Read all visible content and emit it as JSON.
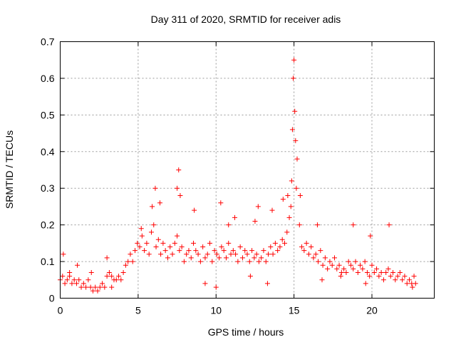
{
  "chart_data": {
    "type": "scatter",
    "title": "Day 311 of 2020, SRMTID for receiver adis",
    "xlabel": "GPS time / hours",
    "ylabel": "SRMTID / TECUs",
    "xlim": [
      0,
      24
    ],
    "ylim": [
      0,
      0.7
    ],
    "xticks": [
      0,
      5,
      10,
      15,
      20
    ],
    "yticks": [
      0,
      0.1,
      0.2,
      0.3,
      0.4,
      0.5,
      0.6,
      0.7
    ],
    "xtick_labels": [
      "0",
      "5",
      "10",
      "15",
      "20"
    ],
    "ytick_labels": [
      "0",
      "0.1",
      "0.2",
      "0.3",
      "0.4",
      "0.5",
      "0.6",
      "0.7"
    ],
    "grid": true,
    "marker": "+",
    "series": [
      {
        "name": "SRMTID",
        "color": "#ff0000",
        "x": [
          0.0,
          0.15,
          0.3,
          0.45,
          0.6,
          0.75,
          0.9,
          1.05,
          1.2,
          1.35,
          1.5,
          1.65,
          1.8,
          1.95,
          2.1,
          2.25,
          2.4,
          2.55,
          2.7,
          2.85,
          3.0,
          3.15,
          3.3,
          3.45,
          3.6,
          3.75,
          3.9,
          4.05,
          4.2,
          4.35,
          4.5,
          4.65,
          4.8,
          4.95,
          5.1,
          5.25,
          5.4,
          5.55,
          5.7,
          5.85,
          6.0,
          6.15,
          6.3,
          6.45,
          6.6,
          6.75,
          6.9,
          7.05,
          7.2,
          7.35,
          7.5,
          7.65,
          7.8,
          7.95,
          8.1,
          8.25,
          8.4,
          8.55,
          8.7,
          8.85,
          9.0,
          9.15,
          9.3,
          9.45,
          9.6,
          9.75,
          9.9,
          10.05,
          10.2,
          10.35,
          10.5,
          10.65,
          10.8,
          10.95,
          11.1,
          11.25,
          11.4,
          11.55,
          11.7,
          11.85,
          12.0,
          12.15,
          12.3,
          12.45,
          12.6,
          12.75,
          12.9,
          13.05,
          13.2,
          13.35,
          13.5,
          13.65,
          13.8,
          13.95,
          14.1,
          14.25,
          14.4,
          14.55,
          14.7,
          14.8,
          14.85,
          14.9,
          14.95,
          15.0,
          15.05,
          15.1,
          15.2,
          15.35,
          15.5,
          15.65,
          15.8,
          15.95,
          16.1,
          16.25,
          16.4,
          16.55,
          16.7,
          16.85,
          17.0,
          17.15,
          17.3,
          17.45,
          17.6,
          17.75,
          17.9,
          18.05,
          18.2,
          18.35,
          18.5,
          18.65,
          18.8,
          18.95,
          19.1,
          19.25,
          19.4,
          19.55,
          19.7,
          19.85,
          20.0,
          20.15,
          20.3,
          20.45,
          20.6,
          20.75,
          20.9,
          21.05,
          21.2,
          21.35,
          21.5,
          21.65,
          21.8,
          21.95,
          22.1,
          22.25,
          22.4,
          22.55,
          22.7,
          22.8,
          5.2,
          5.9,
          6.1,
          6.4,
          7.5,
          7.6,
          7.7,
          8.6,
          10.3,
          10.8,
          11.2,
          12.5,
          12.7,
          13.6,
          14.3,
          14.6,
          15.15,
          15.4,
          16.5,
          18.8,
          19.9,
          21.1,
          0.2,
          0.6,
          1.1,
          2.0,
          3.0,
          3.3,
          9.3,
          10.0,
          12.2,
          13.3,
          16.8,
          18.0,
          19.6,
          22.6
        ],
        "y": [
          0.05,
          0.06,
          0.04,
          0.05,
          0.06,
          0.04,
          0.05,
          0.04,
          0.05,
          0.03,
          0.04,
          0.03,
          0.05,
          0.03,
          0.02,
          0.03,
          0.02,
          0.03,
          0.04,
          0.03,
          0.06,
          0.07,
          0.06,
          0.05,
          0.05,
          0.06,
          0.05,
          0.07,
          0.09,
          0.1,
          0.12,
          0.1,
          0.13,
          0.15,
          0.14,
          0.17,
          0.13,
          0.15,
          0.12,
          0.18,
          0.2,
          0.14,
          0.16,
          0.12,
          0.15,
          0.13,
          0.11,
          0.14,
          0.12,
          0.15,
          0.17,
          0.13,
          0.14,
          0.1,
          0.12,
          0.13,
          0.11,
          0.15,
          0.13,
          0.12,
          0.1,
          0.14,
          0.11,
          0.12,
          0.15,
          0.1,
          0.13,
          0.12,
          0.11,
          0.14,
          0.13,
          0.11,
          0.15,
          0.12,
          0.13,
          0.12,
          0.1,
          0.14,
          0.11,
          0.13,
          0.12,
          0.1,
          0.13,
          0.11,
          0.12,
          0.1,
          0.11,
          0.13,
          0.1,
          0.12,
          0.14,
          0.12,
          0.15,
          0.13,
          0.14,
          0.16,
          0.15,
          0.18,
          0.22,
          0.25,
          0.32,
          0.46,
          0.6,
          0.65,
          0.51,
          0.43,
          0.38,
          0.2,
          0.14,
          0.13,
          0.15,
          0.12,
          0.14,
          0.11,
          0.12,
          0.1,
          0.13,
          0.09,
          0.11,
          0.08,
          0.1,
          0.09,
          0.11,
          0.08,
          0.09,
          0.07,
          0.08,
          0.07,
          0.1,
          0.09,
          0.08,
          0.1,
          0.07,
          0.09,
          0.08,
          0.1,
          0.07,
          0.06,
          0.09,
          0.07,
          0.08,
          0.06,
          0.07,
          0.05,
          0.07,
          0.08,
          0.06,
          0.07,
          0.05,
          0.06,
          0.07,
          0.05,
          0.06,
          0.04,
          0.05,
          0.04,
          0.06,
          0.04,
          0.19,
          0.25,
          0.3,
          0.26,
          0.3,
          0.35,
          0.28,
          0.24,
          0.26,
          0.2,
          0.22,
          0.21,
          0.25,
          0.24,
          0.27,
          0.28,
          0.3,
          0.28,
          0.2,
          0.2,
          0.17,
          0.2,
          0.12,
          0.07,
          0.09,
          0.07,
          0.11,
          0.03,
          0.04,
          0.03,
          0.06,
          0.04,
          0.05,
          0.06,
          0.04,
          0.03
        ]
      }
    ]
  }
}
